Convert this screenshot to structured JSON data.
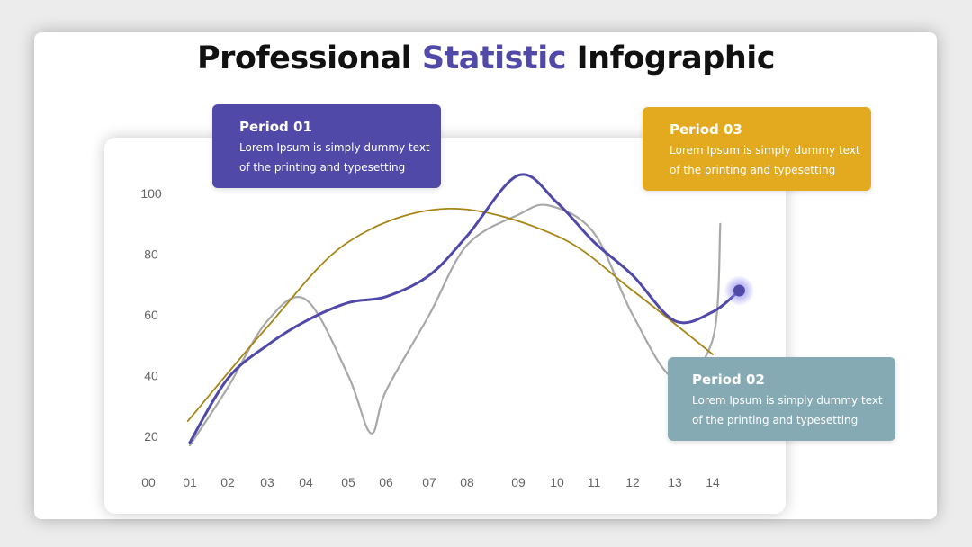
{
  "title": {
    "part1": "Professional ",
    "accent": "Statistic",
    "part2": " Infographic"
  },
  "colors": {
    "accent": "#5149a8",
    "gold": "#e3aa1f",
    "teal": "#86aab3",
    "grey_line": "#a8a8a8",
    "gold_line": "#a78514"
  },
  "callouts": [
    {
      "title": "Period 01",
      "text": "Lorem Ipsum is simply dummy text of the printing and typesetting",
      "color": "#5149a8"
    },
    {
      "title": "Period 03",
      "text": "Lorem Ipsum is simply dummy text of the printing and typesetting",
      "color": "#e3aa1f"
    },
    {
      "title": "Period 02",
      "text": "Lorem Ipsum is simply dummy text of the printing and typesetting",
      "color": "#86aab3"
    }
  ],
  "chart_data": {
    "type": "line",
    "x_ticks": [
      "00",
      "01",
      "02",
      "03",
      "04",
      "05",
      "06",
      "07",
      "08",
      "09",
      "10",
      "11",
      "12",
      "13",
      "14"
    ],
    "y_ticks": [
      "20",
      "40",
      "60",
      "80",
      "100"
    ],
    "ylim": [
      20,
      100
    ],
    "grid": false,
    "legend": "none",
    "series": [
      {
        "color": "#5149a8",
        "highlight_index": 14,
        "points": [
          [
            1,
            18
          ],
          [
            2,
            39
          ],
          [
            3,
            50
          ],
          [
            4,
            58
          ],
          [
            5,
            64
          ],
          [
            6,
            66
          ],
          [
            7,
            73
          ],
          [
            8,
            86
          ],
          [
            9,
            106
          ],
          [
            10,
            97
          ],
          [
            11,
            84
          ],
          [
            12,
            73
          ],
          [
            13,
            58
          ],
          [
            14,
            61
          ],
          [
            14.7,
            68
          ]
        ]
      },
      {
        "color": "#a78514",
        "points": [
          [
            0.95,
            25
          ],
          [
            3,
            56
          ],
          [
            5,
            84
          ],
          [
            7.5,
            95
          ],
          [
            10,
            86
          ],
          [
            12,
            68
          ],
          [
            14,
            47
          ]
        ]
      },
      {
        "color": "#a8a8a8",
        "points": [
          [
            1,
            17
          ],
          [
            2,
            36
          ],
          [
            3,
            58
          ],
          [
            4,
            65
          ],
          [
            5,
            40
          ],
          [
            5.6,
            21
          ],
          [
            6,
            35
          ],
          [
            7,
            60
          ],
          [
            8,
            83
          ],
          [
            9,
            93
          ],
          [
            9.8,
            96
          ],
          [
            11,
            87
          ],
          [
            12,
            60
          ],
          [
            13,
            39
          ],
          [
            14,
            52
          ],
          [
            14.2,
            90
          ]
        ]
      }
    ]
  }
}
